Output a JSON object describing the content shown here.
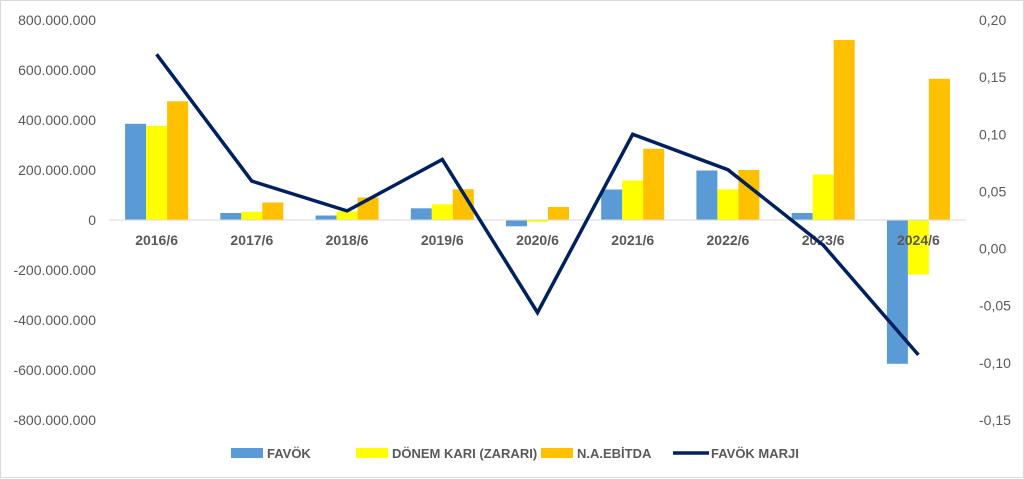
{
  "chart_data": {
    "type": "bar",
    "title": "",
    "categories": [
      "2016/6",
      "2017/6",
      "2018/6",
      "2019/6",
      "2020/6",
      "2021/6",
      "2022/6",
      "2023/6",
      "2024/6"
    ],
    "series": [
      {
        "name": "FAVÖK",
        "type": "bar",
        "axis": "left",
        "color": "#5b9bd5",
        "values": [
          385000000,
          28000000,
          18000000,
          47000000,
          -25000000,
          122000000,
          198000000,
          28000000,
          -575000000
        ]
      },
      {
        "name": "DÖNEM KARI (ZARARI)",
        "type": "bar",
        "axis": "left",
        "color": "#ffff00",
        "values": [
          377000000,
          33000000,
          35000000,
          63000000,
          -8000000,
          158000000,
          123000000,
          182000000,
          -218000000
        ]
      },
      {
        "name": "N.A.EBİTDA",
        "type": "bar",
        "axis": "left",
        "color": "#ffc000",
        "values": [
          475000000,
          70000000,
          90000000,
          123000000,
          52000000,
          285000000,
          200000000,
          720000000,
          565000000
        ]
      },
      {
        "name": "FAVÖK MARJI",
        "type": "line",
        "axis": "right",
        "color": "#002060",
        "values": [
          0.17,
          0.059,
          0.033,
          0.078,
          -0.056,
          0.1,
          0.069,
          0.003,
          -0.093
        ]
      }
    ],
    "y_left": {
      "min": -800000000,
      "max": 800000000,
      "step": 200000000,
      "ticks": [
        "800.000.000",
        "600.000.000",
        "400.000.000",
        "200.000.000",
        "0",
        "-200.000.000",
        "-400.000.000",
        "-600.000.000",
        "-800.000.000"
      ]
    },
    "y_right": {
      "min": -0.15,
      "max": 0.2,
      "step": 0.05,
      "ticks": [
        "0,20",
        "0,15",
        "0,10",
        "0,05",
        "0,00",
        "-0,05",
        "-0,10",
        "-0,15"
      ]
    },
    "grid": false,
    "legend_position": "bottom"
  }
}
